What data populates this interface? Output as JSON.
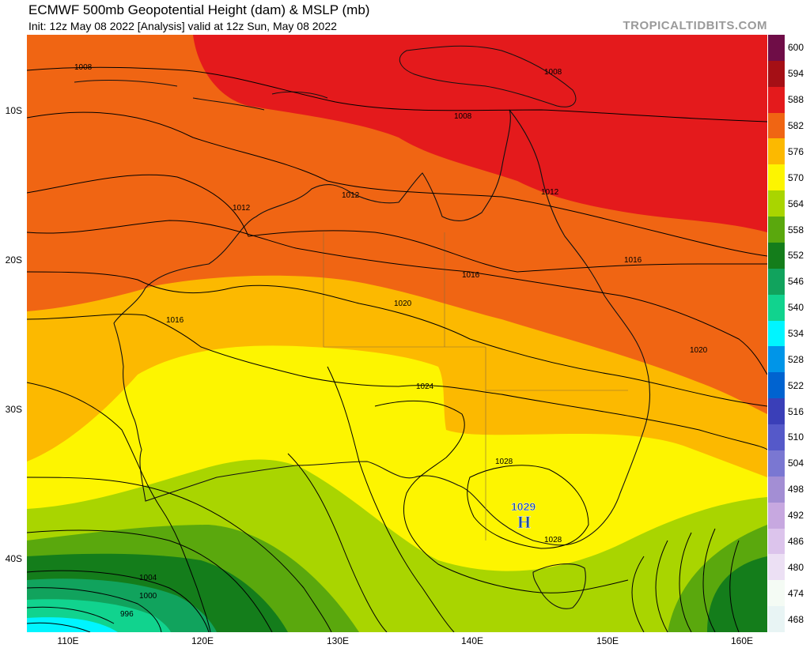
{
  "header": {
    "title": "ECMWF 500mb Geopotential Height (dam) & MSLP (mb)",
    "subtitle": "Init: 12z May 08 2022   [Analysis]   valid at 12z Sun, May 08 2022",
    "brand": "TROPICALTIDBITS.COM"
  },
  "axes": {
    "lat_labels": [
      "10S",
      "20S",
      "30S",
      "40S"
    ],
    "lon_labels": [
      "110E",
      "120E",
      "130E",
      "140E",
      "150E",
      "160E"
    ]
  },
  "colorbar": {
    "labels": [
      "600",
      "594",
      "588",
      "582",
      "576",
      "570",
      "564",
      "558",
      "552",
      "546",
      "540",
      "534",
      "528",
      "522",
      "516",
      "510",
      "504",
      "498",
      "492",
      "486",
      "480",
      "474",
      "468"
    ],
    "colors": [
      "#6f0d47",
      "#a50f15",
      "#e41a1c",
      "#f06513",
      "#fcb900",
      "#fdf500",
      "#a9d500",
      "#5aa80d",
      "#147d1b",
      "#11a35d",
      "#11d38e",
      "#00f5ff",
      "#0095e8",
      "#0063d0",
      "#3a3fb8",
      "#5559c9",
      "#7a77d2",
      "#a38ed4",
      "#c7a8e0",
      "#dcc4ec",
      "#ece0f4",
      "#f4fbf4",
      "#e8f4f4"
    ]
  },
  "pressure_centers": [
    {
      "type": "H",
      "value": "1029"
    }
  ],
  "isobar_labels": [
    "1008",
    "1008",
    "1008",
    "1012",
    "1012",
    "1012",
    "1016",
    "1016",
    "1016",
    "1020",
    "1020",
    "1024",
    "1028",
    "1028",
    "1004",
    "1000",
    "996",
    "1008"
  ]
}
